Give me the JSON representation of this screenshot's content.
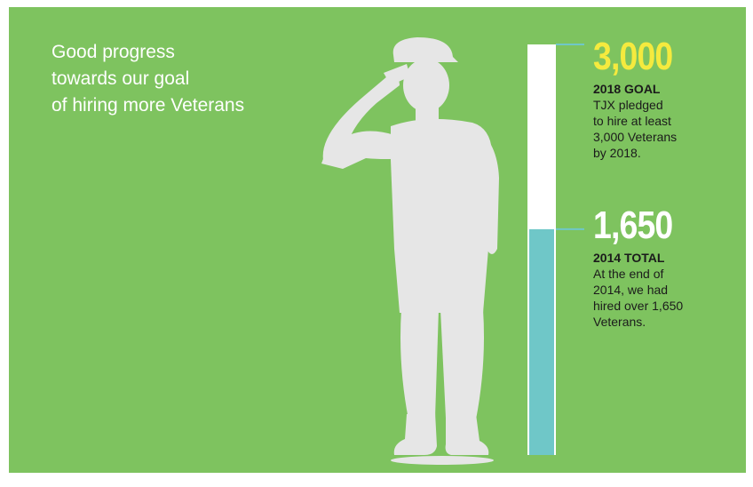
{
  "headline": [
    "Good progress",
    "towards our goal",
    "of hiring more Veterans"
  ],
  "colors": {
    "background": "#7ec35f",
    "goal_value": "#f5ea3e",
    "bar_fill": "#6fc7c8",
    "bar_empty": "#ffffff",
    "silhouette": "#e6e6e6",
    "text_dark": "#1b1b1b"
  },
  "icons": [
    "saluting-soldier-silhouette"
  ],
  "chart_data": {
    "type": "bar",
    "orientation": "vertical-progress",
    "goal": 3000,
    "current": 1650,
    "ylim": [
      0,
      3000
    ],
    "markers": [
      {
        "value_text": "3,000",
        "value": 3000,
        "label": "2018 GOAL",
        "description": [
          "TJX pledged",
          "to hire at least",
          "3,000 Veterans",
          "by 2018."
        ]
      },
      {
        "value_text": "1,650",
        "value": 1650,
        "label": "2014 TOTAL",
        "description": [
          "At the end of",
          "2014, we had",
          "hired over 1,650",
          "Veterans."
        ]
      }
    ]
  }
}
